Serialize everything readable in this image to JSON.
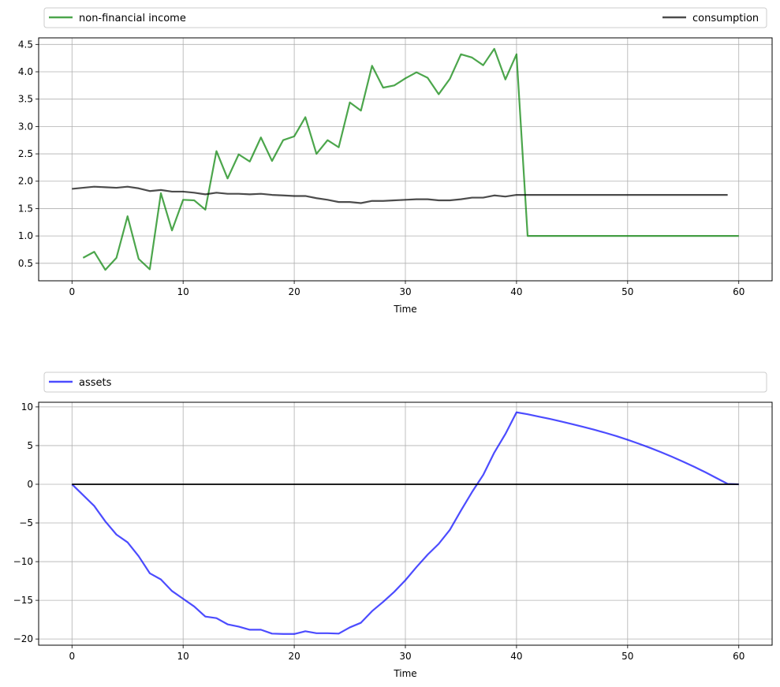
{
  "chart_data": [
    {
      "type": "line",
      "xlabel": "Time",
      "ylabel": "",
      "xlim": [
        -3,
        63
      ],
      "ylim": [
        0.18,
        4.62
      ],
      "xticks": [
        0,
        10,
        20,
        30,
        40,
        50,
        60
      ],
      "yticks": [
        0.5,
        1.0,
        1.5,
        2.0,
        2.5,
        3.0,
        3.5,
        4.0,
        4.5
      ],
      "ytick_labels": [
        "0.5",
        "1.0",
        "1.5",
        "2.0",
        "2.5",
        "3.0",
        "3.5",
        "4.0",
        "4.5"
      ],
      "grid": true,
      "legend": "above-plot",
      "series": [
        {
          "name": "non-financial income",
          "color": "#008000",
          "x": [
            1,
            2,
            3,
            4,
            5,
            6,
            7,
            8,
            9,
            10,
            11,
            12,
            13,
            14,
            15,
            16,
            17,
            18,
            19,
            20,
            21,
            22,
            23,
            24,
            25,
            26,
            27,
            28,
            29,
            30,
            31,
            32,
            33,
            34,
            35,
            36,
            37,
            38,
            39,
            40,
            41,
            42,
            43,
            44,
            45,
            46,
            47,
            48,
            49,
            50,
            51,
            52,
            53,
            54,
            55,
            56,
            57,
            58,
            59,
            60
          ],
          "values": [
            0.6,
            0.71,
            0.38,
            0.6,
            1.36,
            0.58,
            0.39,
            1.78,
            1.1,
            1.66,
            1.65,
            1.48,
            2.55,
            2.05,
            2.49,
            2.36,
            2.8,
            2.37,
            2.75,
            2.82,
            3.17,
            2.5,
            2.75,
            2.62,
            3.44,
            3.29,
            4.11,
            3.71,
            3.75,
            3.88,
            3.99,
            3.89,
            3.59,
            3.87,
            4.32,
            4.26,
            4.12,
            4.42,
            3.86,
            4.32,
            1.0,
            1.0,
            1.0,
            1.0,
            1.0,
            1.0,
            1.0,
            1.0,
            1.0,
            1.0,
            1.0,
            1.0,
            1.0,
            1.0,
            1.0,
            1.0,
            1.0,
            1.0,
            1.0,
            1.0
          ]
        },
        {
          "name": "consumption",
          "color": "#000000",
          "x": [
            0,
            1,
            2,
            3,
            4,
            5,
            6,
            7,
            8,
            9,
            10,
            11,
            12,
            13,
            14,
            15,
            16,
            17,
            18,
            19,
            20,
            21,
            22,
            23,
            24,
            25,
            26,
            27,
            28,
            29,
            30,
            31,
            32,
            33,
            34,
            35,
            36,
            37,
            38,
            39,
            40,
            41,
            42,
            43,
            44,
            45,
            46,
            47,
            48,
            49,
            50,
            51,
            52,
            53,
            54,
            55,
            56,
            57,
            58,
            59
          ],
          "values": [
            1.86,
            1.88,
            1.9,
            1.89,
            1.88,
            1.9,
            1.87,
            1.82,
            1.84,
            1.81,
            1.81,
            1.79,
            1.76,
            1.79,
            1.77,
            1.77,
            1.76,
            1.77,
            1.75,
            1.74,
            1.73,
            1.73,
            1.69,
            1.66,
            1.62,
            1.62,
            1.6,
            1.64,
            1.64,
            1.65,
            1.66,
            1.67,
            1.67,
            1.65,
            1.65,
            1.67,
            1.7,
            1.7,
            1.74,
            1.72,
            1.75,
            1.75,
            1.75,
            1.75,
            1.75,
            1.75,
            1.75,
            1.75,
            1.75,
            1.75,
            1.75,
            1.75,
            1.75,
            1.75,
            1.75,
            1.75,
            1.75,
            1.75,
            1.75,
            1.75
          ]
        }
      ]
    },
    {
      "type": "line",
      "xlabel": "Time",
      "ylabel": "",
      "xlim": [
        -3,
        63
      ],
      "ylim": [
        -20.8,
        10.6
      ],
      "xticks": [
        0,
        10,
        20,
        30,
        40,
        50,
        60
      ],
      "yticks": [
        -20,
        -15,
        -10,
        -5,
        0,
        5,
        10
      ],
      "ytick_labels": [
        "−20",
        "−15",
        "−10",
        "−5",
        "0",
        "5",
        "10"
      ],
      "grid": true,
      "legend": "above-plot",
      "series": [
        {
          "name": "assets",
          "color": "#0000ff",
          "x": [
            0,
            1,
            2,
            3,
            4,
            5,
            6,
            7,
            8,
            9,
            10,
            11,
            12,
            13,
            14,
            15,
            16,
            17,
            18,
            19,
            20,
            21,
            22,
            23,
            24,
            25,
            26,
            27,
            28,
            29,
            30,
            31,
            32,
            33,
            34,
            35,
            36,
            37,
            38,
            39,
            40,
            41,
            42,
            43,
            44,
            45,
            46,
            47,
            48,
            49,
            50,
            51,
            52,
            53,
            54,
            55,
            56,
            57,
            58,
            59,
            60
          ],
          "values": [
            0,
            -1.4,
            -2.8,
            -4.8,
            -6.5,
            -7.5,
            -9.3,
            -11.5,
            -12.3,
            -13.8,
            -14.8,
            -15.8,
            -17.1,
            -17.3,
            -18.1,
            -18.4,
            -18.8,
            -18.8,
            -19.3,
            -19.35,
            -19.35,
            -19.0,
            -19.25,
            -19.25,
            -19.3,
            -18.5,
            -17.9,
            -16.4,
            -15.2,
            -13.9,
            -12.4,
            -10.7,
            -9.1,
            -7.7,
            -5.9,
            -3.4,
            -1.0,
            1.2,
            4.1,
            6.5,
            9.3,
            9.05,
            8.75,
            8.45,
            8.12,
            7.78,
            7.42,
            7.05,
            6.65,
            6.22,
            5.75,
            5.25,
            4.72,
            4.15,
            3.55,
            2.92,
            2.25,
            1.55,
            0.8,
            0.05,
            0.0
          ]
        },
        {
          "name": "",
          "color": "#000000",
          "x": [
            0,
            60
          ],
          "values": [
            0,
            0
          ]
        }
      ]
    }
  ]
}
